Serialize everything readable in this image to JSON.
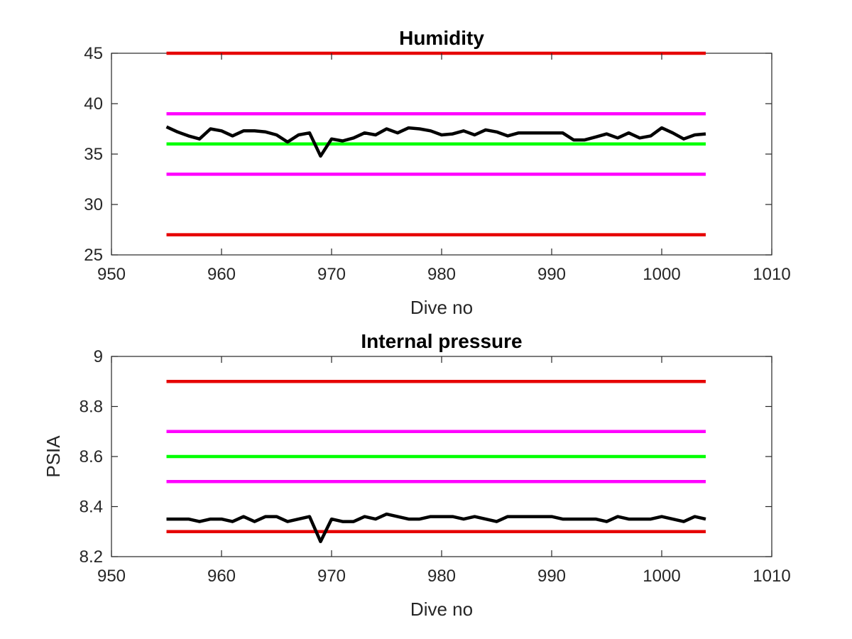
{
  "colors": {
    "limit_red": "#e60000",
    "limit_magenta": "#ff00ff",
    "target_green": "#00ff00",
    "data_black": "#000000"
  },
  "chart_data": [
    {
      "type": "line",
      "title": "Humidity",
      "xlabel": "Dive no",
      "ylabel": "",
      "xlim": [
        950,
        1010
      ],
      "ylim": [
        25,
        45
      ],
      "xticks": [
        950,
        960,
        970,
        980,
        990,
        1000,
        1010
      ],
      "yticks": [
        25,
        30,
        35,
        40,
        45
      ],
      "grid": false,
      "hlines": [
        {
          "y": 45,
          "x": [
            955,
            1004
          ],
          "color": "limit_red"
        },
        {
          "y": 39,
          "x": [
            955,
            1004
          ],
          "color": "limit_magenta"
        },
        {
          "y": 36,
          "x": [
            955,
            1004
          ],
          "color": "target_green"
        },
        {
          "y": 33,
          "x": [
            955,
            1004
          ],
          "color": "limit_magenta"
        },
        {
          "y": 27,
          "x": [
            955,
            1004
          ],
          "color": "limit_red"
        }
      ],
      "series": [
        {
          "color": "data_black",
          "x": [
            955,
            956,
            957,
            958,
            959,
            960,
            961,
            962,
            963,
            964,
            965,
            966,
            967,
            968,
            969,
            970,
            971,
            972,
            973,
            974,
            975,
            976,
            977,
            978,
            979,
            980,
            981,
            982,
            983,
            984,
            985,
            986,
            987,
            988,
            989,
            990,
            991,
            992,
            993,
            994,
            995,
            996,
            997,
            998,
            999,
            1000,
            1001,
            1002,
            1003,
            1004
          ],
          "values": [
            37.7,
            37.2,
            36.8,
            36.5,
            37.5,
            37.3,
            36.8,
            37.3,
            37.3,
            37.2,
            36.9,
            36.2,
            36.9,
            37.1,
            34.8,
            36.5,
            36.3,
            36.6,
            37.1,
            36.9,
            37.5,
            37.1,
            37.6,
            37.5,
            37.3,
            36.9,
            37.0,
            37.3,
            36.9,
            37.4,
            37.2,
            36.8,
            37.1,
            37.1,
            37.1,
            37.1,
            37.1,
            36.4,
            36.4,
            36.7,
            37.0,
            36.6,
            37.1,
            36.6,
            36.8,
            37.6,
            37.1,
            36.5,
            36.9,
            37.0
          ]
        }
      ]
    },
    {
      "type": "line",
      "title": "Internal pressure",
      "xlabel": "Dive no",
      "ylabel": "PSIA",
      "xlim": [
        950,
        1010
      ],
      "ylim": [
        8.2,
        9
      ],
      "xticks": [
        950,
        960,
        970,
        980,
        990,
        1000,
        1010
      ],
      "yticks": [
        8.2,
        8.4,
        8.6,
        8.8,
        9
      ],
      "ytick_labels": [
        "8.2",
        "8.4",
        "8.6",
        "8.8",
        "9"
      ],
      "grid": false,
      "hlines": [
        {
          "y": 8.9,
          "x": [
            955,
            1004
          ],
          "color": "limit_red"
        },
        {
          "y": 8.7,
          "x": [
            955,
            1004
          ],
          "color": "limit_magenta"
        },
        {
          "y": 8.6,
          "x": [
            955,
            1004
          ],
          "color": "target_green"
        },
        {
          "y": 8.5,
          "x": [
            955,
            1004
          ],
          "color": "limit_magenta"
        },
        {
          "y": 8.3,
          "x": [
            955,
            1004
          ],
          "color": "limit_red"
        }
      ],
      "series": [
        {
          "color": "data_black",
          "x": [
            955,
            956,
            957,
            958,
            959,
            960,
            961,
            962,
            963,
            964,
            965,
            966,
            967,
            968,
            969,
            970,
            971,
            972,
            973,
            974,
            975,
            976,
            977,
            978,
            979,
            980,
            981,
            982,
            983,
            984,
            985,
            986,
            987,
            988,
            989,
            990,
            991,
            992,
            993,
            994,
            995,
            996,
            997,
            998,
            999,
            1000,
            1001,
            1002,
            1003,
            1004
          ],
          "values": [
            8.35,
            8.35,
            8.35,
            8.34,
            8.35,
            8.35,
            8.34,
            8.36,
            8.34,
            8.36,
            8.36,
            8.34,
            8.35,
            8.36,
            8.26,
            8.35,
            8.34,
            8.34,
            8.36,
            8.35,
            8.37,
            8.36,
            8.35,
            8.35,
            8.36,
            8.36,
            8.36,
            8.35,
            8.36,
            8.35,
            8.34,
            8.36,
            8.36,
            8.36,
            8.36,
            8.36,
            8.35,
            8.35,
            8.35,
            8.35,
            8.34,
            8.36,
            8.35,
            8.35,
            8.35,
            8.36,
            8.35,
            8.34,
            8.36,
            8.35
          ]
        }
      ]
    }
  ]
}
